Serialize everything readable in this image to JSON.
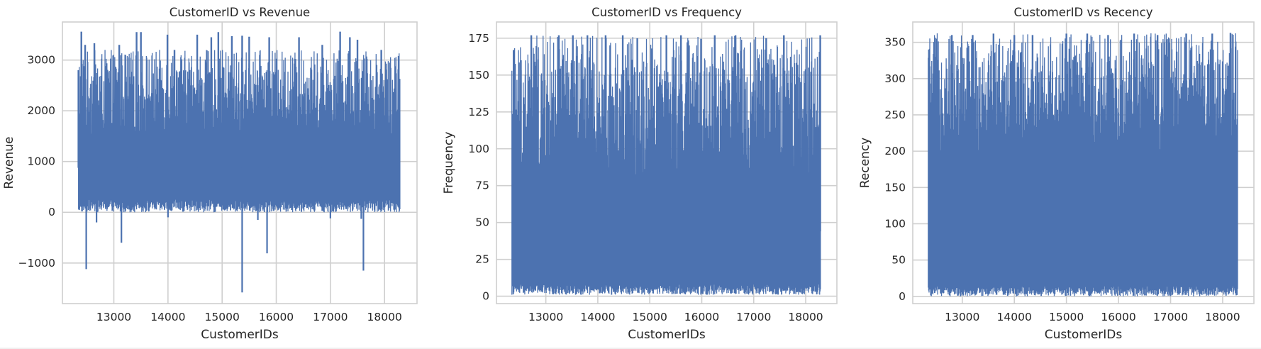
{
  "figure": {
    "background": "#ffffff"
  },
  "colors": {
    "line": "#4c72b0",
    "grid": "#cfcfcf",
    "frame": "#cfcfcf",
    "text": "#262626"
  },
  "chart_data": [
    {
      "type": "line",
      "title": "CustomerID vs Revenue",
      "xlabel": "CustomerIDs",
      "ylabel": "Revenue",
      "xlim": [
        12050,
        18600
      ],
      "ylim": [
        -1800,
        3750
      ],
      "xticks": [
        13000,
        14000,
        15000,
        16000,
        17000,
        18000
      ],
      "xtick_labels": [
        "13000",
        "14000",
        "15000",
        "16000",
        "17000",
        "18000"
      ],
      "yticks": [
        -1000,
        0,
        1000,
        2000,
        3000
      ],
      "ytick_labels": [
        "−1000",
        "0",
        "1000",
        "2000",
        "3000"
      ],
      "grid": true,
      "series": [
        {
          "color": "#4c72b0",
          "x_range": [
            12347,
            18287
          ],
          "band": {
            "low": [
              0,
              250
            ],
            "high": [
              1500,
              3200
            ]
          },
          "peaks": [
            [
              12346,
              2800
            ],
            [
              12400,
              3560
            ],
            [
              12470,
              3300
            ],
            [
              12640,
              3330
            ],
            [
              13100,
              3300
            ],
            [
              13420,
              3550
            ],
            [
              13500,
              3550
            ],
            [
              13990,
              3500
            ],
            [
              14120,
              3200
            ],
            [
              14540,
              3500
            ],
            [
              14800,
              3450
            ],
            [
              14930,
              3550
            ],
            [
              15180,
              3470
            ],
            [
              15370,
              3480
            ],
            [
              15500,
              3460
            ],
            [
              15870,
              3450
            ],
            [
              16420,
              3450
            ],
            [
              16850,
              3300
            ],
            [
              17180,
              3560
            ],
            [
              17360,
              3450
            ],
            [
              17500,
              3400
            ],
            [
              17940,
              3200
            ],
            [
              18100,
              2950
            ],
            [
              18260,
              3080
            ]
          ],
          "dips": [
            [
              12490,
              -1120
            ],
            [
              12680,
              -200
            ],
            [
              13140,
              -600
            ],
            [
              14000,
              -100
            ],
            [
              15370,
              -1580
            ],
            [
              15660,
              -150
            ],
            [
              15830,
              -810
            ],
            [
              17000,
              -120
            ],
            [
              17570,
              -130
            ],
            [
              17610,
              -1150
            ]
          ]
        }
      ]
    },
    {
      "type": "line",
      "title": "CustomerID vs Frequency",
      "xlabel": "CustomerIDs",
      "ylabel": "Frequency",
      "xlim": [
        12050,
        18600
      ],
      "ylim": [
        -5,
        186
      ],
      "xticks": [
        13000,
        14000,
        15000,
        16000,
        17000,
        18000
      ],
      "xtick_labels": [
        "13000",
        "14000",
        "15000",
        "16000",
        "17000",
        "18000"
      ],
      "yticks": [
        0,
        25,
        50,
        75,
        100,
        125,
        150,
        175
      ],
      "ytick_labels": [
        "0",
        "25",
        "50",
        "75",
        "100",
        "125",
        "150",
        "175"
      ],
      "grid": true,
      "series": [
        {
          "color": "#4c72b0",
          "x_range": [
            12347,
            18287
          ],
          "band": {
            "low": [
              1,
              8
            ],
            "high": [
              80,
              177
            ]
          },
          "peaks": [
            [
              12380,
              167
            ],
            [
              12520,
              160
            ],
            [
              12720,
              177
            ],
            [
              13250,
              177
            ],
            [
              13520,
              177
            ],
            [
              13800,
              177
            ],
            [
              14150,
              177
            ],
            [
              14480,
              177
            ],
            [
              14760,
              175
            ],
            [
              15320,
              177
            ],
            [
              15600,
              177
            ],
            [
              16250,
              177
            ],
            [
              16650,
              177
            ],
            [
              17240,
              175
            ],
            [
              17580,
              177
            ],
            [
              18280,
              177
            ]
          ],
          "dips": []
        }
      ]
    },
    {
      "type": "line",
      "title": "CustomerID vs Recency",
      "xlabel": "CustomerIDs",
      "ylabel": "Recency",
      "xlim": [
        12050,
        18600
      ],
      "ylim": [
        -10,
        378
      ],
      "xticks": [
        13000,
        14000,
        15000,
        16000,
        17000,
        18000
      ],
      "xtick_labels": [
        "13000",
        "14000",
        "15000",
        "16000",
        "17000",
        "18000"
      ],
      "yticks": [
        0,
        50,
        100,
        150,
        200,
        250,
        300,
        350
      ],
      "ytick_labels": [
        "0",
        "50",
        "100",
        "150",
        "200",
        "250",
        "300",
        "350"
      ],
      "grid": true,
      "series": [
        {
          "color": "#4c72b0",
          "x_range": [
            12347,
            18287
          ],
          "band": {
            "low": [
              0,
              15
            ],
            "high": [
              200,
              363
            ]
          },
          "peaks": [
            [
              12360,
              340
            ],
            [
              12500,
              355
            ],
            [
              12800,
              360
            ],
            [
              13200,
              360
            ],
            [
              13600,
              362
            ],
            [
              14000,
              360
            ],
            [
              14350,
              360
            ],
            [
              15000,
              362
            ],
            [
              15400,
              362
            ],
            [
              15800,
              360
            ],
            [
              16300,
              362
            ],
            [
              16750,
              360
            ],
            [
              17300,
              362
            ],
            [
              17800,
              362
            ],
            [
              18150,
              363
            ]
          ],
          "dips": []
        }
      ]
    }
  ]
}
